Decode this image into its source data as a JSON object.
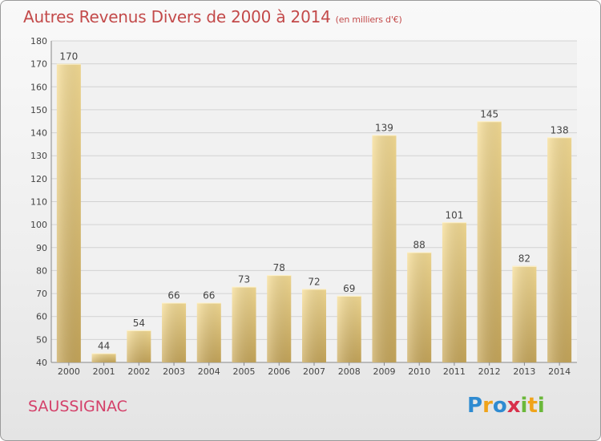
{
  "chart_data": {
    "type": "bar",
    "title": "Autres Revenus Divers de 2000 à 2014",
    "subtitle": "(en milliers d'€)",
    "categories": [
      "2000",
      "2001",
      "2002",
      "2003",
      "2004",
      "2005",
      "2006",
      "2007",
      "2008",
      "2009",
      "2010",
      "2011",
      "2012",
      "2013",
      "2014"
    ],
    "values": [
      170,
      44,
      54,
      66,
      66,
      73,
      78,
      72,
      69,
      139,
      88,
      101,
      145,
      82,
      138
    ],
    "ylim": [
      40,
      180
    ],
    "yticks": [
      40,
      50,
      60,
      70,
      80,
      90,
      100,
      110,
      120,
      130,
      140,
      150,
      160,
      170,
      180
    ],
    "grid": true,
    "bar_color": "#e8cc7c"
  },
  "footer": {
    "place": "SAUSSIGNAC",
    "logo": [
      "P",
      "r",
      "o",
      "x",
      "i",
      "t",
      "i"
    ],
    "logo_colors": [
      "#2f8bd1",
      "#f0a31a",
      "#2f8bd1",
      "#d8304a",
      "#6bb83a",
      "#f0a31a",
      "#6bb83a"
    ]
  }
}
